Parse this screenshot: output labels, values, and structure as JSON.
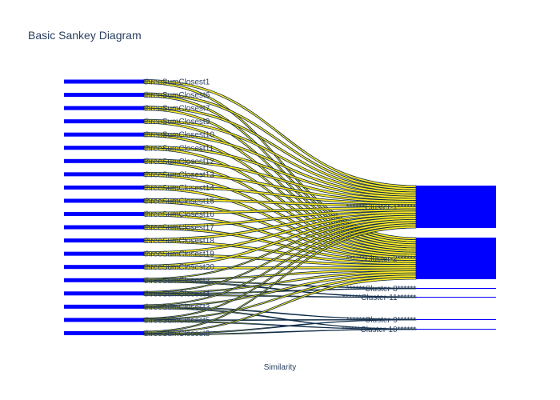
{
  "chart_data": {
    "type": "sankey",
    "title": "Basic Sankey Diagram",
    "xlabel": "Similarity",
    "node_color": "#0000ff",
    "link_color": "#ffe800",
    "link_stroke": "#0d2a47",
    "source_nodes": [
      "threeSumClosest1",
      "threeSumClosest6",
      "threeSumClosest7",
      "threeSumClosest9",
      "threeSumClosest10",
      "threeSumClosest11",
      "threeSumClosest12",
      "threeSumClosest13",
      "threeSumClosest14",
      "threeSumClosest15",
      "threeSumClosest16",
      "threeSumClosest17",
      "threeSumClosest18",
      "threeSumClosest19",
      "threeSumClosest20",
      "threeSumClosest2",
      "threeSumClosest4",
      "threeSumClosest3",
      "threeSumClosest5",
      "threeSumClosest8"
    ],
    "target_nodes": [
      "******Cluster-1******",
      "******Cluster-2******",
      "******Cluster-8******",
      "******Cluster-11******",
      "******Cluster-9******",
      "******Cluster-10******"
    ],
    "links": [
      {
        "source": "threeSumClosest1",
        "target": "******Cluster-1******"
      },
      {
        "source": "threeSumClosest1",
        "target": "******Cluster-2******"
      },
      {
        "source": "threeSumClosest6",
        "target": "******Cluster-1******"
      },
      {
        "source": "threeSumClosest6",
        "target": "******Cluster-2******"
      },
      {
        "source": "threeSumClosest7",
        "target": "******Cluster-1******"
      },
      {
        "source": "threeSumClosest7",
        "target": "******Cluster-2******"
      },
      {
        "source": "threeSumClosest9",
        "target": "******Cluster-1******"
      },
      {
        "source": "threeSumClosest9",
        "target": "******Cluster-2******"
      },
      {
        "source": "threeSumClosest10",
        "target": "******Cluster-1******"
      },
      {
        "source": "threeSumClosest10",
        "target": "******Cluster-2******"
      },
      {
        "source": "threeSumClosest11",
        "target": "******Cluster-1******"
      },
      {
        "source": "threeSumClosest11",
        "target": "******Cluster-2******"
      },
      {
        "source": "threeSumClosest12",
        "target": "******Cluster-1******"
      },
      {
        "source": "threeSumClosest12",
        "target": "******Cluster-2******"
      },
      {
        "source": "threeSumClosest13",
        "target": "******Cluster-1******"
      },
      {
        "source": "threeSumClosest13",
        "target": "******Cluster-2******"
      },
      {
        "source": "threeSumClosest14",
        "target": "******Cluster-1******"
      },
      {
        "source": "threeSumClosest14",
        "target": "******Cluster-2******"
      },
      {
        "source": "threeSumClosest15",
        "target": "******Cluster-1******"
      },
      {
        "source": "threeSumClosest15",
        "target": "******Cluster-2******"
      },
      {
        "source": "threeSumClosest16",
        "target": "******Cluster-1******"
      },
      {
        "source": "threeSumClosest16",
        "target": "******Cluster-2******"
      },
      {
        "source": "threeSumClosest17",
        "target": "******Cluster-1******"
      },
      {
        "source": "threeSumClosest17",
        "target": "******Cluster-2******"
      },
      {
        "source": "threeSumClosest18",
        "target": "******Cluster-1******"
      },
      {
        "source": "threeSumClosest18",
        "target": "******Cluster-2******"
      },
      {
        "source": "threeSumClosest19",
        "target": "******Cluster-1******"
      },
      {
        "source": "threeSumClosest19",
        "target": "******Cluster-2******"
      },
      {
        "source": "threeSumClosest20",
        "target": "******Cluster-1******"
      },
      {
        "source": "threeSumClosest20",
        "target": "******Cluster-2******"
      },
      {
        "source": "threeSumClosest2",
        "target": "******Cluster-1******"
      },
      {
        "source": "threeSumClosest2",
        "target": "******Cluster-2******"
      },
      {
        "source": "threeSumClosest2",
        "target": "******Cluster-8******"
      },
      {
        "source": "threeSumClosest2",
        "target": "******Cluster-11******"
      },
      {
        "source": "threeSumClosest4",
        "target": "******Cluster-1******"
      },
      {
        "source": "threeSumClosest4",
        "target": "******Cluster-2******"
      },
      {
        "source": "threeSumClosest4",
        "target": "******Cluster-8******"
      },
      {
        "source": "threeSumClosest4",
        "target": "******Cluster-11******"
      },
      {
        "source": "threeSumClosest3",
        "target": "******Cluster-1******"
      },
      {
        "source": "threeSumClosest3",
        "target": "******Cluster-2******"
      },
      {
        "source": "threeSumClosest3",
        "target": "******Cluster-9******"
      },
      {
        "source": "threeSumClosest3",
        "target": "******Cluster-10******"
      },
      {
        "source": "threeSumClosest5",
        "target": "******Cluster-1******"
      },
      {
        "source": "threeSumClosest5",
        "target": "******Cluster-2******"
      },
      {
        "source": "threeSumClosest5",
        "target": "******Cluster-9******"
      },
      {
        "source": "threeSumClosest5",
        "target": "******Cluster-10******"
      },
      {
        "source": "threeSumClosest8",
        "target": "******Cluster-1******"
      },
      {
        "source": "threeSumClosest8",
        "target": "******Cluster-2******"
      },
      {
        "source": "threeSumClosest8",
        "target": "******Cluster-9******"
      },
      {
        "source": "threeSumClosest8",
        "target": "******Cluster-10******"
      }
    ]
  }
}
